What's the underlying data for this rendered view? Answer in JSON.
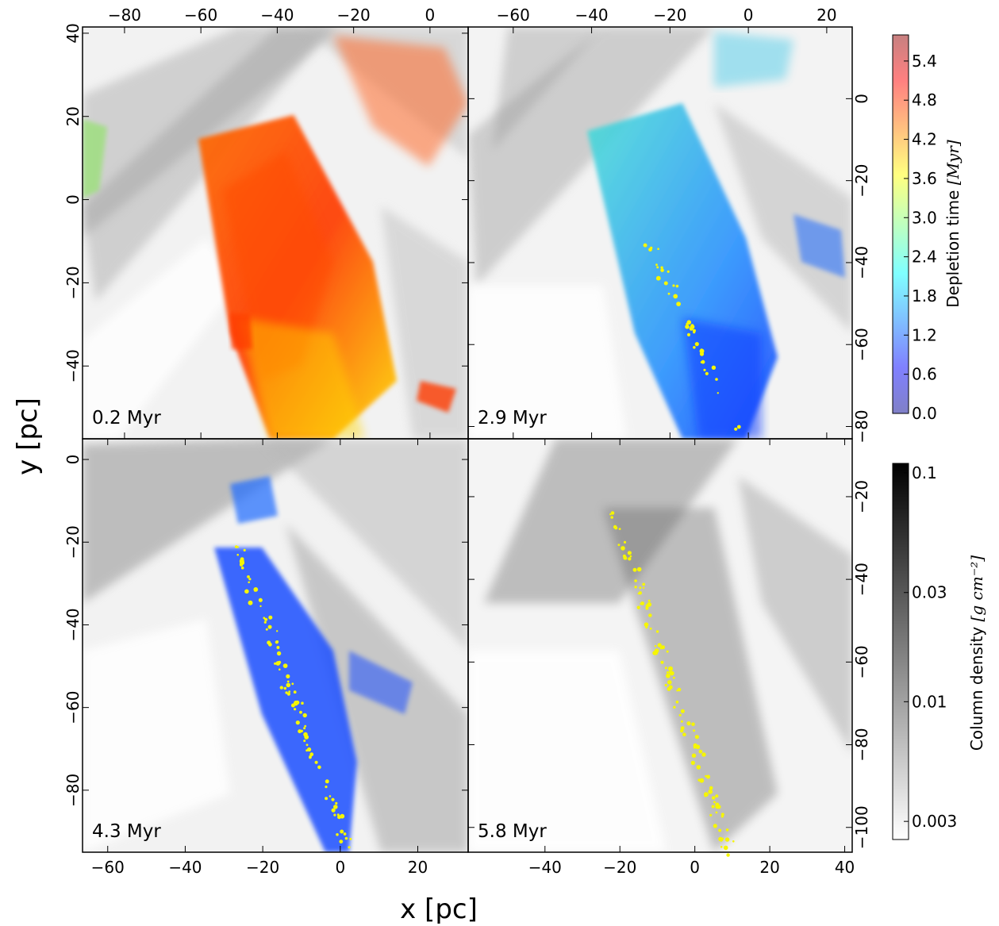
{
  "chart_data": {
    "type": "heatmap",
    "xlabel": "x [pc]",
    "ylabel": "y [pc]",
    "panels": [
      {
        "label": "0.2 Myr",
        "xlim": [
          -66.5,
          32.5
        ],
        "ylim": [
          -57.5,
          41.5
        ],
        "xticks": [
          -80,
          -60,
          -40,
          -20,
          0
        ],
        "xticks_display": [
          "−80",
          "−60",
          "−40",
          "−20",
          "0"
        ],
        "xticks_range": [
          -91,
          10
        ],
        "yticks": [
          -40,
          -20,
          0,
          20,
          40
        ],
        "yticks_display": [
          "−40",
          "−20",
          "0",
          "20",
          "40"
        ],
        "xaxis_side": "top",
        "yaxis_side": "left",
        "overlay": "depletion"
      },
      {
        "label": "2.9 Myr",
        "xticks": [
          -60,
          -40,
          -20,
          0,
          20
        ],
        "xticks_display": [
          "−60",
          "−40",
          "−20",
          "0",
          "20"
        ],
        "xticks_range": [
          -71.5,
          26.5
        ],
        "yticks": [
          -80,
          -60,
          -40,
          -20,
          0
        ],
        "yticks_display": [
          "−80",
          "−60",
          "−40",
          "−20",
          "0"
        ],
        "yticks_range": [
          -83,
          17.5
        ],
        "xaxis_side": "top",
        "yaxis_side": "right",
        "overlay": "depletion-young"
      },
      {
        "label": "4.3 Myr",
        "xlim": [
          -66.5,
          33
        ],
        "ylim": [
          -95,
          5
        ],
        "xticks": [
          -60,
          -40,
          -20,
          0,
          20
        ],
        "xticks_display": [
          "−60",
          "−40",
          "−20",
          "0",
          "20"
        ],
        "yticks": [
          -80,
          -60,
          -40,
          -20,
          0
        ],
        "yticks_display": [
          "−80",
          "−60",
          "−40",
          "−20",
          "0"
        ],
        "xaxis_side": "bottom",
        "yaxis_side": "left",
        "overlay": "depletion-blue"
      },
      {
        "label": "5.8 Myr",
        "xlim": [
          -60.5,
          42
        ],
        "ylim": [
          -106,
          -6
        ],
        "xticks": [
          -40,
          -20,
          0,
          20,
          40
        ],
        "xticks_display": [
          "−40",
          "−20",
          "0",
          "20",
          "40"
        ],
        "yticks": [
          -100,
          -80,
          -60,
          -40,
          -20
        ],
        "yticks_display": [
          "−100",
          "−80",
          "−60",
          "−40",
          "−20"
        ],
        "xaxis_side": "bottom",
        "yaxis_side": "right",
        "overlay": "stars-only"
      }
    ],
    "colorbars": [
      {
        "title": "Depletion time [Myr]",
        "title_text": "Depletion time ",
        "title_unit": "[Myr]",
        "ticks": [
          0.0,
          0.6,
          1.2,
          1.8,
          2.4,
          3.0,
          3.6,
          4.2,
          4.8,
          5.4
        ],
        "ticks_display": [
          "0.0",
          "0.6",
          "1.2",
          "1.8",
          "2.4",
          "3.0",
          "3.6",
          "4.2",
          "4.8",
          "5.4"
        ],
        "range": [
          0,
          5.8
        ],
        "colormap": "jet (alpha 0.55)"
      },
      {
        "title": "Column density [g cm^-2]",
        "title_text": "Column density ",
        "title_unit": "[g cm⁻²]",
        "ticks": [
          0.003,
          0.01,
          0.03,
          0.1
        ],
        "ticks_display": [
          "0.003",
          "0.01",
          "0.03",
          "0.1"
        ],
        "range": [
          0.0025,
          0.11
        ],
        "scale": "log",
        "colormap": "grey (white to black)"
      }
    ],
    "colors": {
      "star_particles": "#f6f600",
      "gas_background": "#7a7a7a"
    }
  }
}
